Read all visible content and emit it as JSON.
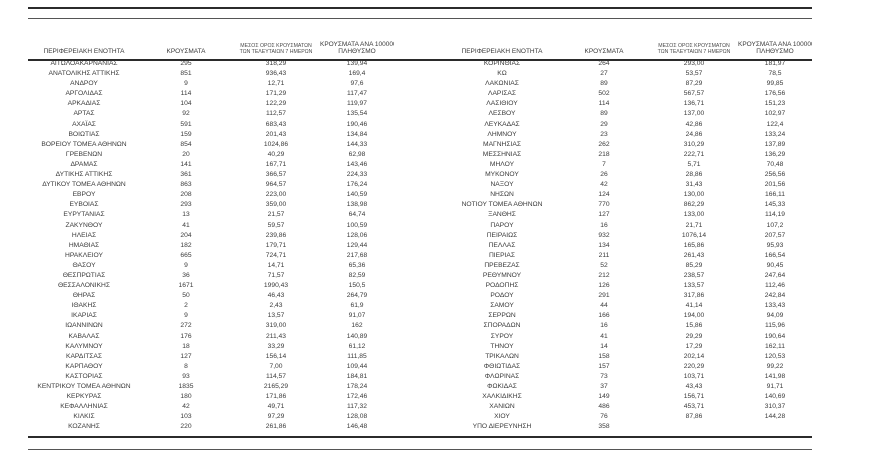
{
  "page": {
    "background_color": "#ffffff",
    "text_color": "#3a3a3a",
    "rule_color": "#2b2b2b"
  },
  "table": {
    "headers": {
      "region": "ΠΕΡΙΦΕΡΕΙΑΚΗ ΕΝΟΤΗΤΑ",
      "cases": "ΚΡΟΥΣΜΑΤΑ",
      "avg7_line1": "ΜΕΣΟΣ ΟΡΟΣ ΚΡΟΥΣΜΑΤΩΝ",
      "avg7_line2": "ΤΩΝ ΤΕΛΕΥΤΑΙΩΝ 7 ΗΜΕΡΩΝ",
      "per100k_line1": "ΚΡΟΥΣΜΑΤΑ ΑΝΑ 100000",
      "per100k_line2": "ΠΛΗΘΥΣΜΟ"
    },
    "left_rows": [
      [
        "ΑΙΤΩΛΟΑΚΑΡΝΑΝΙΑΣ",
        "295",
        "318,29",
        "139,94"
      ],
      [
        "ΑΝΑΤΟΛΙΚΗΣ ΑΤΤΙΚΗΣ",
        "851",
        "936,43",
        "169,4"
      ],
      [
        "ΑΝΔΡΟΥ",
        "9",
        "12,71",
        "97,6"
      ],
      [
        "ΑΡΓΟΛΙΔΑΣ",
        "114",
        "171,29",
        "117,47"
      ],
      [
        "ΑΡΚΑΔΙΑΣ",
        "104",
        "122,29",
        "119,97"
      ],
      [
        "ΑΡΤΑΣ",
        "92",
        "112,57",
        "135,54"
      ],
      [
        "ΑΧΑΪΑΣ",
        "591",
        "683,43",
        "190,46"
      ],
      [
        "ΒΟΙΩΤΙΑΣ",
        "159",
        "201,43",
        "134,84"
      ],
      [
        "ΒΟΡΕΙΟΥ ΤΟΜΕΑ ΑΘΗΝΩΝ",
        "854",
        "1024,86",
        "144,33"
      ],
      [
        "ΓΡΕΒΕΝΩΝ",
        "20",
        "40,29",
        "62,98"
      ],
      [
        "ΔΡΑΜΑΣ",
        "141",
        "167,71",
        "143,46"
      ],
      [
        "ΔΥΤΙΚΗΣ ΑΤΤΙΚΗΣ",
        "361",
        "366,57",
        "224,33"
      ],
      [
        "ΔΥΤΙΚΟΥ ΤΟΜΕΑ ΑΘΗΝΩΝ",
        "863",
        "964,57",
        "176,24"
      ],
      [
        "ΕΒΡΟΥ",
        "208",
        "223,00",
        "140,59"
      ],
      [
        "ΕΥΒΟΙΑΣ",
        "293",
        "359,00",
        "138,98"
      ],
      [
        "ΕΥΡΥΤΑΝΙΑΣ",
        "13",
        "21,57",
        "64,74"
      ],
      [
        "ΖΑΚΥΝΘΟΥ",
        "41",
        "59,57",
        "100,59"
      ],
      [
        "ΗΛΕΙΑΣ",
        "204",
        "239,86",
        "128,06"
      ],
      [
        "ΗΜΑΘΙΑΣ",
        "182",
        "179,71",
        "129,44"
      ],
      [
        "ΗΡΑΚΛΕΙΟΥ",
        "665",
        "724,71",
        "217,68"
      ],
      [
        "ΘΑΣΟΥ",
        "9",
        "14,71",
        "65,36"
      ],
      [
        "ΘΕΣΠΡΩΤΙΑΣ",
        "36",
        "71,57",
        "82,59"
      ],
      [
        "ΘΕΣΣΑΛΟΝΙΚΗΣ",
        "1671",
        "1990,43",
        "150,5"
      ],
      [
        "ΘΗΡΑΣ",
        "50",
        "46,43",
        "264,79"
      ],
      [
        "ΙΘΑΚΗΣ",
        "2",
        "2,43",
        "61,9"
      ],
      [
        "ΙΚΑΡΙΑΣ",
        "9",
        "13,57",
        "91,07"
      ],
      [
        "ΙΩΑΝΝΙΝΩΝ",
        "272",
        "319,00",
        "162"
      ],
      [
        "ΚΑΒΑΛΑΣ",
        "176",
        "211,43",
        "140,89"
      ],
      [
        "ΚΑΛΥΜΝΟΥ",
        "18",
        "33,29",
        "61,12"
      ],
      [
        "ΚΑΡΔΙΤΣΑΣ",
        "127",
        "156,14",
        "111,85"
      ],
      [
        "ΚΑΡΠΑΘΟΥ",
        "8",
        "7,00",
        "109,44"
      ],
      [
        "ΚΑΣΤΟΡΙΑΣ",
        "93",
        "114,57",
        "184,81"
      ],
      [
        "ΚΕΝΤΡΙΚΟΥ ΤΟΜΕΑ ΑΘΗΝΩΝ",
        "1835",
        "2165,29",
        "178,24"
      ],
      [
        "ΚΕΡΚΥΡΑΣ",
        "180",
        "171,86",
        "172,46"
      ],
      [
        "ΚΕΦΑΛΛΗΝΙΑΣ",
        "42",
        "49,71",
        "117,32"
      ],
      [
        "ΚΙΛΚΙΣ",
        "103",
        "97,29",
        "128,08"
      ],
      [
        "ΚΟΖΑΝΗΣ",
        "220",
        "261,86",
        "146,48"
      ]
    ],
    "right_rows": [
      [
        "ΚΟΡΙΝΘΙΑΣ",
        "264",
        "293,00",
        "181,97"
      ],
      [
        "ΚΩ",
        "27",
        "53,57",
        "78,5"
      ],
      [
        "ΛΑΚΩΝΙΑΣ",
        "89",
        "87,29",
        "99,85"
      ],
      [
        "ΛΑΡΙΣΑΣ",
        "502",
        "567,57",
        "176,56"
      ],
      [
        "ΛΑΣΙΘΙΟΥ",
        "114",
        "136,71",
        "151,23"
      ],
      [
        "ΛΕΣΒΟΥ",
        "89",
        "137,00",
        "102,97"
      ],
      [
        "ΛΕΥΚΑΔΑΣ",
        "29",
        "42,86",
        "122,4"
      ],
      [
        "ΛΗΜΝΟΥ",
        "23",
        "24,86",
        "133,24"
      ],
      [
        "ΜΑΓΝΗΣΙΑΣ",
        "262",
        "310,29",
        "137,89"
      ],
      [
        "ΜΕΣΣΗΝΙΑΣ",
        "218",
        "222,71",
        "136,29"
      ],
      [
        "ΜΗΛΟΥ",
        "7",
        "5,71",
        "70,48"
      ],
      [
        "ΜΥΚΟΝΟΥ",
        "26",
        "28,86",
        "256,56"
      ],
      [
        "ΝΑΞΟΥ",
        "42",
        "31,43",
        "201,56"
      ],
      [
        "ΝΗΣΩΝ",
        "124",
        "130,00",
        "166,11"
      ],
      [
        "ΝΟΤΙΟΥ ΤΟΜΕΑ ΑΘΗΝΩΝ",
        "770",
        "862,29",
        "145,33"
      ],
      [
        "ΞΑΝΘΗΣ",
        "127",
        "133,00",
        "114,19"
      ],
      [
        "ΠΑΡΟΥ",
        "16",
        "21,71",
        "107,2"
      ],
      [
        "ΠΕΙΡΑΙΩΣ",
        "932",
        "1076,14",
        "207,57"
      ],
      [
        "ΠΕΛΛΑΣ",
        "134",
        "165,86",
        "95,93"
      ],
      [
        "ΠΙΕΡΙΑΣ",
        "211",
        "261,43",
        "166,54"
      ],
      [
        "ΠΡΕΒΕΖΑΣ",
        "52",
        "85,29",
        "90,45"
      ],
      [
        "ΡΕΘΥΜΝΟΥ",
        "212",
        "238,57",
        "247,64"
      ],
      [
        "ΡΟΔΟΠΗΣ",
        "126",
        "133,57",
        "112,46"
      ],
      [
        "ΡΟΔΟΥ",
        "291",
        "317,86",
        "242,84"
      ],
      [
        "ΣΑΜΟΥ",
        "44",
        "41,14",
        "133,43"
      ],
      [
        "ΣΕΡΡΩΝ",
        "166",
        "194,00",
        "94,09"
      ],
      [
        "ΣΠΟΡΑΔΩΝ",
        "16",
        "15,86",
        "115,96"
      ],
      [
        "ΣΥΡΟΥ",
        "41",
        "29,29",
        "190,64"
      ],
      [
        "ΤΗΝΟΥ",
        "14",
        "17,29",
        "162,11"
      ],
      [
        "ΤΡΙΚΑΛΩΝ",
        "158",
        "202,14",
        "120,53"
      ],
      [
        "ΦΘΙΩΤΙΔΑΣ",
        "157",
        "220,29",
        "99,22"
      ],
      [
        "ΦΛΩΡΙΝΑΣ",
        "73",
        "103,71",
        "141,98"
      ],
      [
        "ΦΩΚΙΔΑΣ",
        "37",
        "43,43",
        "91,71"
      ],
      [
        "ΧΑΛΚΙΔΙΚΗΣ",
        "149",
        "156,71",
        "140,69"
      ],
      [
        "ΧΑΝΙΩΝ",
        "486",
        "453,71",
        "310,37"
      ],
      [
        "ΧΙΟΥ",
        "76",
        "87,86",
        "144,28"
      ],
      [
        "ΥΠΟ ΔΙΕΡΕΥΝΗΣΗ",
        "358",
        "",
        ""
      ]
    ]
  }
}
